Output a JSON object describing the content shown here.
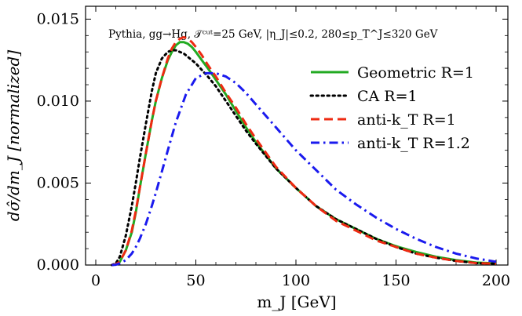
{
  "chart_data": {
    "type": "line",
    "title": "",
    "annotation": "Pythia, gg→Hg, 𝒯ᶜᵘᵗ=25 GeV, |η_J|≤0.2, 280≤p_T^J≤320 GeV",
    "xlabel": "m_J [GeV]",
    "ylabel": "dσ̂/dm_J [normalized]",
    "xlim": [
      0,
      200
    ],
    "ylim": [
      0,
      0.0165
    ],
    "xticks": [
      "0",
      "50",
      "100",
      "150",
      "200"
    ],
    "yticks": [
      "0.000",
      "0.005",
      "0.010",
      "0.015"
    ],
    "grid": false,
    "legend_position": "top-right",
    "series": [
      {
        "name": "Geometric R=1",
        "color": "#22aa22",
        "dash": "solid",
        "x": [
          8,
          10,
          12,
          15,
          18,
          20,
          22,
          25,
          28,
          30,
          33,
          36,
          38,
          40,
          42,
          44,
          46,
          48,
          50,
          53,
          56,
          60,
          65,
          70,
          75,
          80,
          90,
          100,
          110,
          120,
          130,
          140,
          150,
          160,
          170,
          180,
          190,
          200
        ],
        "y": [
          0,
          5e-05,
          0.0002,
          0.0009,
          0.002,
          0.0032,
          0.0047,
          0.0068,
          0.0088,
          0.01,
          0.0114,
          0.0125,
          0.013,
          0.0134,
          0.0136,
          0.0136,
          0.0135,
          0.0133,
          0.013,
          0.0125,
          0.012,
          0.0113,
          0.0104,
          0.0094,
          0.0084,
          0.0075,
          0.0059,
          0.0047,
          0.0036,
          0.0028,
          0.0022,
          0.0016,
          0.00115,
          0.0008,
          0.0005,
          0.0003,
          0.00015,
          0.0001
        ]
      },
      {
        "name": "CA R=1",
        "color": "#000000",
        "dash": "dotted",
        "x": [
          8,
          10,
          12,
          15,
          18,
          20,
          22,
          25,
          28,
          30,
          33,
          36,
          38,
          40,
          42,
          44,
          46,
          48,
          50,
          53,
          56,
          60,
          65,
          70,
          75,
          80,
          90,
          100,
          110,
          120,
          130,
          140,
          150,
          160,
          170,
          180,
          190,
          200
        ],
        "y": [
          0,
          0.0001,
          0.0005,
          0.0018,
          0.0036,
          0.005,
          0.0065,
          0.0086,
          0.0106,
          0.0117,
          0.0126,
          0.013,
          0.0131,
          0.0131,
          0.013,
          0.0129,
          0.0127,
          0.0125,
          0.0123,
          0.0119,
          0.0115,
          0.0109,
          0.01,
          0.0091,
          0.0082,
          0.0074,
          0.0059,
          0.0047,
          0.0036,
          0.0028,
          0.0022,
          0.0016,
          0.0011,
          0.0007,
          0.00045,
          0.00025,
          0.00012,
          8e-05
        ]
      },
      {
        "name": "anti-k_T R=1",
        "color": "#ee2a12",
        "dash": "dashed",
        "x": [
          8,
          10,
          12,
          15,
          18,
          20,
          22,
          25,
          28,
          30,
          33,
          36,
          38,
          40,
          42,
          44,
          46,
          48,
          50,
          53,
          56,
          60,
          65,
          70,
          75,
          80,
          90,
          100,
          110,
          120,
          130,
          140,
          150,
          160,
          170,
          180,
          190,
          200
        ],
        "y": [
          0,
          5e-05,
          0.0002,
          0.0009,
          0.0021,
          0.0033,
          0.0047,
          0.0068,
          0.0088,
          0.01,
          0.0114,
          0.0126,
          0.0132,
          0.0136,
          0.0138,
          0.0139,
          0.0138,
          0.0136,
          0.0133,
          0.0128,
          0.0122,
          0.0115,
          0.0105,
          0.0096,
          0.0086,
          0.0077,
          0.006,
          0.0047,
          0.0036,
          0.0027,
          0.0021,
          0.0015,
          0.0011,
          0.0007,
          0.00045,
          0.00025,
          0.00012,
          8e-05
        ]
      },
      {
        "name": "anti-k_T R=1.2",
        "color": "#1a1aee",
        "dash": "dashdot",
        "x": [
          8,
          10,
          12,
          15,
          18,
          20,
          22,
          25,
          28,
          30,
          33,
          36,
          40,
          45,
          50,
          55,
          60,
          65,
          70,
          75,
          80,
          90,
          100,
          110,
          120,
          130,
          140,
          150,
          160,
          170,
          180,
          190,
          200
        ],
        "y": [
          0,
          2e-05,
          0.0001,
          0.0003,
          0.0007,
          0.0011,
          0.0016,
          0.0025,
          0.0036,
          0.0044,
          0.0057,
          0.007,
          0.0087,
          0.0104,
          0.0114,
          0.0117,
          0.0117,
          0.0115,
          0.0111,
          0.0105,
          0.0098,
          0.0084,
          0.007,
          0.0058,
          0.0046,
          0.0037,
          0.0029,
          0.0022,
          0.0016,
          0.0011,
          0.0007,
          0.0004,
          0.0002
        ]
      }
    ]
  }
}
